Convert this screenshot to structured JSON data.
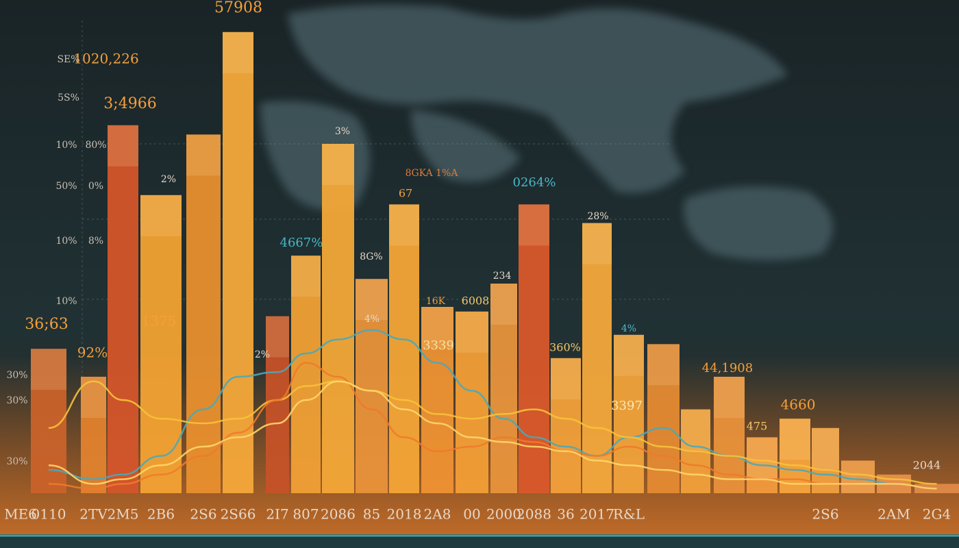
{
  "chart_data": {
    "type": "bar",
    "x_label": "ME6",
    "categories": [
      "0110",
      "2TV",
      "2M5",
      "2B6",
      "2S6",
      "2S66",
      "2I7",
      "807",
      "2086",
      "85",
      "2018",
      "2A8",
      "00",
      "2000",
      "2088",
      "36",
      "2017",
      "R&L",
      null,
      null,
      null,
      null,
      null,
      "2S6",
      null,
      "2AM",
      "2G4"
    ],
    "values": [
      31,
      25,
      79,
      64,
      77,
      99,
      38,
      51,
      75,
      46,
      62,
      40,
      39,
      45,
      62,
      29,
      58,
      34,
      32,
      18,
      25,
      12,
      16,
      14,
      7,
      4,
      2
    ],
    "bar_colors": [
      "#c9622a",
      "#e0822e",
      "#d4552a",
      "#f2a233",
      "#e88f2e",
      "#f4a83a",
      "#c55228",
      "#f0a035",
      "#f3a838",
      "#e9923a",
      "#f4a536",
      "#ee9233",
      "#f29e36",
      "#e8943c",
      "#d9582a",
      "#f1a03a",
      "#f3a83c",
      "#f0a23a",
      "#e48a33",
      "#f0a03a",
      "#e9913a",
      "#f29a3c",
      "#f5a43c",
      "#f0a040",
      "#e88e3a",
      "#e08036",
      "#d87634"
    ],
    "series": [
      {
        "color": "#4aa8b8",
        "values": [
          5,
          3,
          4,
          8,
          18,
          25,
          26,
          30,
          33,
          35,
          33,
          28,
          22,
          16,
          12,
          10,
          8,
          12,
          14,
          10,
          8,
          6,
          5,
          4,
          3,
          2,
          1
        ]
      },
      {
        "color": "#f7c23a",
        "values": [
          14,
          24,
          20,
          16,
          15,
          16,
          20,
          23,
          24,
          22,
          20,
          17,
          16,
          17,
          18,
          16,
          14,
          12,
          10,
          9,
          8,
          7,
          6,
          5,
          4,
          3,
          2
        ]
      },
      {
        "color": "#f07a2a",
        "values": [
          2,
          1,
          2,
          4,
          8,
          13,
          20,
          28,
          25,
          18,
          12,
          9,
          10,
          12,
          11,
          9,
          8,
          10,
          8,
          6,
          4,
          3,
          3,
          2,
          2,
          2,
          1
        ]
      },
      {
        "color": "#ffd56a",
        "values": [
          6,
          2,
          3,
          6,
          10,
          12,
          15,
          20,
          24,
          22,
          18,
          15,
          12,
          11,
          10,
          9,
          7,
          6,
          5,
          4,
          3,
          3,
          2,
          2,
          2,
          2,
          1
        ]
      }
    ],
    "ylim": [
      0,
      100
    ],
    "left_labels": [
      "SE%",
      "1020,226",
      "5S%",
      "10%",
      "80%",
      "50%",
      "0%",
      "10%",
      "8%",
      "10%",
      "30%",
      "30%",
      "30%"
    ],
    "annotations": [
      "57908",
      "3;4966",
      "36;63",
      "92%",
      "1375",
      "2%",
      "3%",
      "8GKA 1%A",
      "67",
      "0264%",
      "4667%",
      "8G%",
      "234",
      "16K",
      "6008",
      "2%",
      "4%",
      "3339",
      "360%",
      "28%",
      "4%",
      "3397",
      "44,1908",
      "4660",
      "475",
      "2044"
    ]
  }
}
